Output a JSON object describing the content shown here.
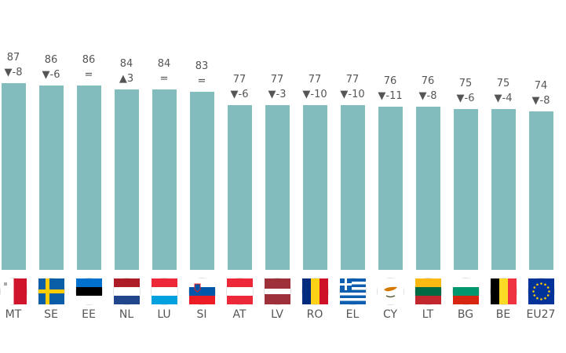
{
  "chart_data": {
    "type": "bar",
    "title": "",
    "xlabel": "",
    "ylabel": "",
    "categories": [
      "MT",
      "SE",
      "EE",
      "NL",
      "LU",
      "SI",
      "AT",
      "LV",
      "RO",
      "EL",
      "CY",
      "LT",
      "BG",
      "BE",
      "EU27"
    ],
    "values": [
      87,
      86,
      86,
      84,
      84,
      83,
      77,
      77,
      77,
      77,
      76,
      76,
      75,
      75,
      74
    ],
    "changes": [
      "▼-8",
      "▼-6",
      "=",
      "▲3",
      "=",
      "=",
      "▼-6",
      "▼-3",
      "▼-10",
      "▼-10",
      "▼-11",
      "▼-8",
      "▼-6",
      "▼-4",
      "▼-8"
    ],
    "bar_color": "#82bcbc",
    "grid": false,
    "legend": "none"
  },
  "bars": [
    {
      "code": "MT",
      "value": "87",
      "change": "▼-8",
      "flag": "malta"
    },
    {
      "code": "SE",
      "value": "86",
      "change": "▼-6",
      "flag": "sweden"
    },
    {
      "code": "EE",
      "value": "86",
      "change": "=",
      "flag": "estonia"
    },
    {
      "code": "NL",
      "value": "84",
      "change": "▲3",
      "flag": "netherlands"
    },
    {
      "code": "LU",
      "value": "84",
      "change": "=",
      "flag": "luxembourg"
    },
    {
      "code": "SI",
      "value": "83",
      "change": "=",
      "flag": "slovenia"
    },
    {
      "code": "AT",
      "value": "77",
      "change": "▼-6",
      "flag": "austria"
    },
    {
      "code": "LV",
      "value": "77",
      "change": "▼-3",
      "flag": "latvia"
    },
    {
      "code": "RO",
      "value": "77",
      "change": "▼-10",
      "flag": "romania"
    },
    {
      "code": "EL",
      "value": "77",
      "change": "▼-10",
      "flag": "greece"
    },
    {
      "code": "CY",
      "value": "76",
      "change": "▼-11",
      "flag": "cyprus"
    },
    {
      "code": "LT",
      "value": "76",
      "change": "▼-8",
      "flag": "lithuania"
    },
    {
      "code": "BG",
      "value": "75",
      "change": "▼-6",
      "flag": "bulgaria"
    },
    {
      "code": "BE",
      "value": "75",
      "change": "▼-4",
      "flag": "belgium"
    },
    {
      "code": "EU27",
      "value": "74",
      "change": "▼-8",
      "flag": "eu"
    }
  ]
}
